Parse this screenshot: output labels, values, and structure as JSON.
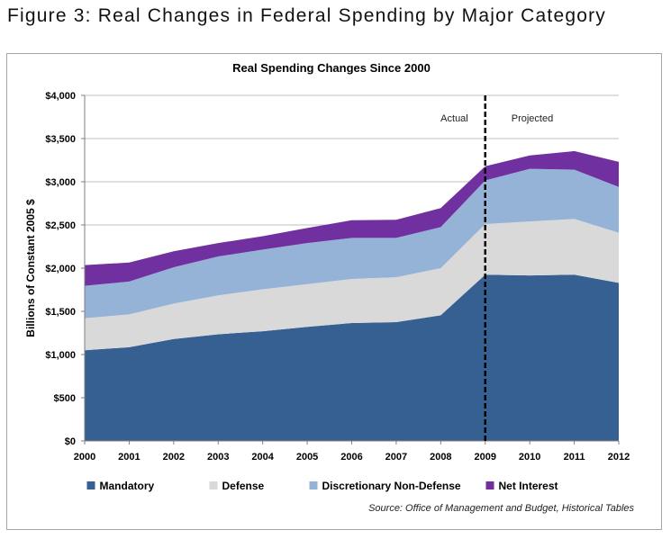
{
  "figure_title": "Figure 3: Real Changes in Federal Spending by Major Category",
  "source_note": "Source: Office of Management and Budget, Historical Tables",
  "chart_data": {
    "type": "area",
    "stacked": true,
    "title": "Real Spending Changes  Since 2000",
    "xlabel": "",
    "ylabel": "Billions of Constant 2005 $",
    "x": [
      2000,
      2001,
      2002,
      2003,
      2004,
      2005,
      2006,
      2007,
      2008,
      2009,
      2010,
      2011,
      2012
    ],
    "ylim": [
      0,
      4000
    ],
    "yticks": [
      0,
      500,
      1000,
      1500,
      2000,
      2500,
      3000,
      3500,
      4000
    ],
    "ytick_labels": [
      "$0",
      "$500",
      "$1,000",
      "$1,500",
      "$2,000",
      "$2,500",
      "$3,000",
      "$3,500",
      "$4,000"
    ],
    "grid": true,
    "legend_position": "bottom",
    "series": [
      {
        "name": "Mandatory",
        "color": "#376092",
        "values": [
          1050,
          1085,
          1180,
          1235,
          1270,
          1320,
          1365,
          1375,
          1455,
          1925,
          1915,
          1925,
          1830
        ]
      },
      {
        "name": "Defense",
        "color": "#d9d9d9",
        "values": [
          370,
          380,
          410,
          450,
          485,
          495,
          510,
          520,
          545,
          585,
          625,
          645,
          580
        ]
      },
      {
        "name": "Discretionary Non-Defense",
        "color": "#95b3d7",
        "values": [
          375,
          380,
          420,
          450,
          460,
          475,
          475,
          455,
          475,
          505,
          610,
          570,
          530
        ]
      },
      {
        "name": "Net Interest",
        "color": "#7030a0",
        "values": [
          240,
          220,
          185,
          155,
          155,
          175,
          205,
          210,
          220,
          165,
          155,
          215,
          290
        ]
      }
    ],
    "divider": {
      "x": 2009,
      "left_label": "Actual",
      "right_label": "Projected"
    }
  }
}
